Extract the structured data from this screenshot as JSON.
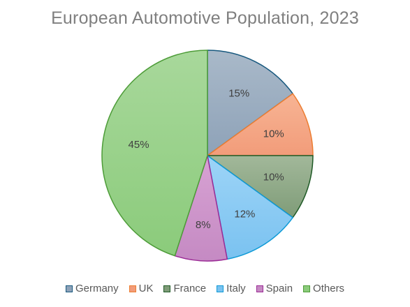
{
  "chart_data": {
    "type": "pie",
    "title": "European Automotive Population, 2023",
    "start_angle_deg": 0,
    "direction": "clockwise",
    "legend_position": "bottom",
    "slices": [
      {
        "label": "Germany",
        "value": 15,
        "display": "15%",
        "fill_light": "#a9b9c9",
        "fill_dark": "#8ea2b8",
        "stroke": "#17587e"
      },
      {
        "label": "UK",
        "value": 10,
        "display": "10%",
        "fill_light": "#f7b494",
        "fill_dark": "#f29c7a",
        "stroke": "#ec7d31"
      },
      {
        "label": "France",
        "value": 10,
        "display": "10%",
        "fill_light": "#a2b89a",
        "fill_dark": "#7f9c78",
        "stroke": "#1f5a26"
      },
      {
        "label": "Italy",
        "value": 12,
        "display": "12%",
        "fill_light": "#9dd4f7",
        "fill_dark": "#7ac2f0",
        "stroke": "#0e9ad6"
      },
      {
        "label": "Spain",
        "value": 8,
        "display": "8%",
        "fill_light": "#d7a2d3",
        "fill_dark": "#c58ac3",
        "stroke": "#9b2b96"
      },
      {
        "label": "Others",
        "value": 45,
        "display": "45%",
        "fill_light": "#a8d89b",
        "fill_dark": "#8bcb7b",
        "stroke": "#4d9c38"
      }
    ]
  }
}
